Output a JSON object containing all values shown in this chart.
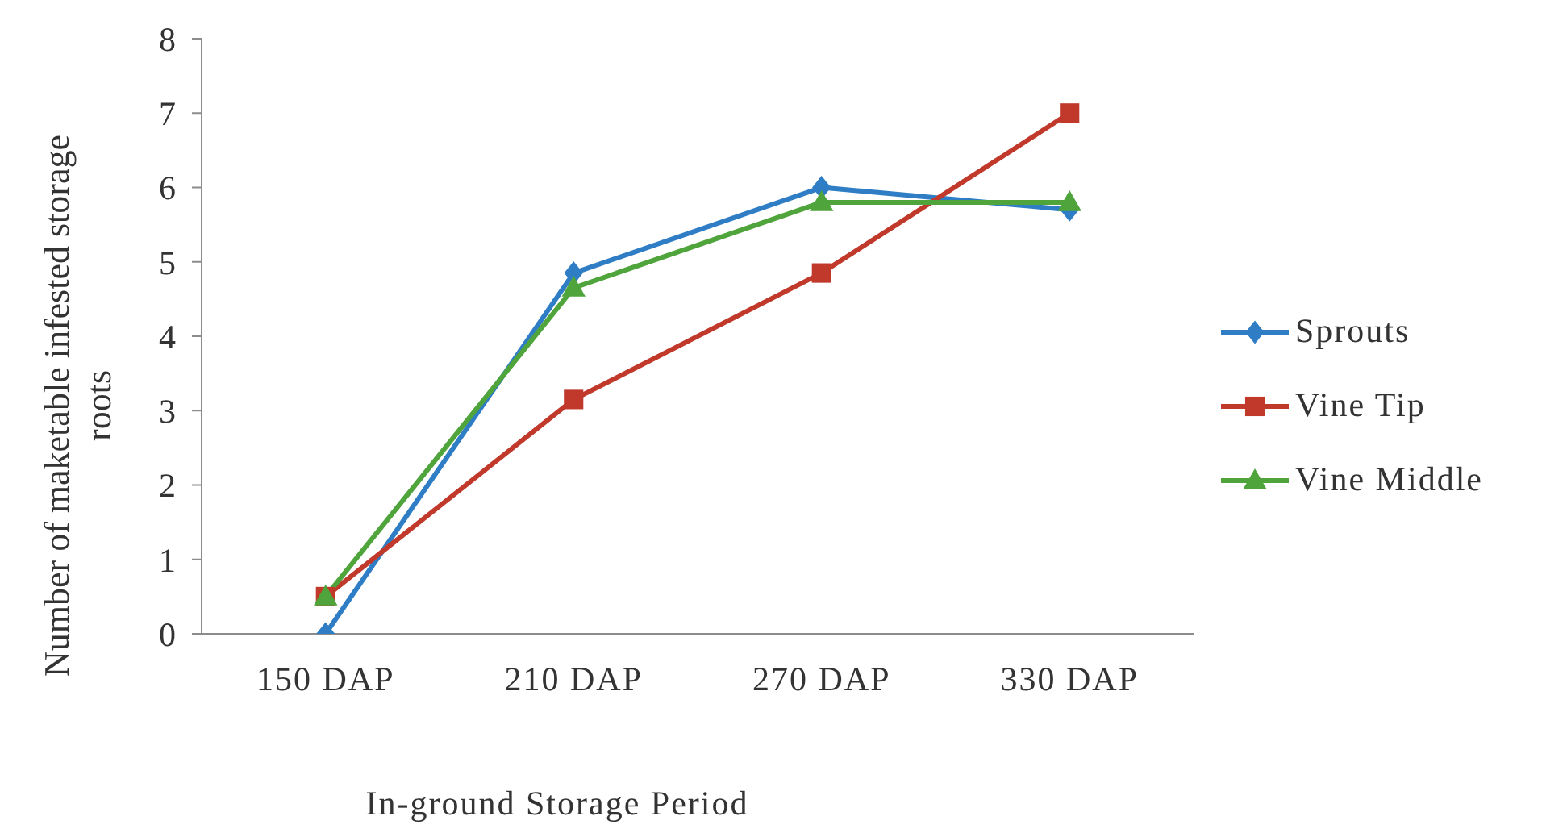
{
  "chart_data": {
    "type": "line",
    "xlabel": "In-ground Storage Period",
    "ylabel": "Number of maketable infested storage roots",
    "categories": [
      "150 DAP",
      "210 DAP",
      "270 DAP",
      "330 DAP"
    ],
    "series": [
      {
        "name": "Sprouts",
        "color": "#2f7ec5",
        "marker": "diamond",
        "values": [
          0,
          4.85,
          6.0,
          5.7
        ]
      },
      {
        "name": "Vine Tip",
        "color": "#c0392b",
        "marker": "square",
        "values": [
          0.5,
          3.15,
          4.85,
          7.0
        ]
      },
      {
        "name": "Vine Middle",
        "color": "#4fa43c",
        "marker": "triangle",
        "values": [
          0.5,
          4.65,
          5.8,
          5.8
        ]
      }
    ],
    "ylim": [
      0,
      8
    ],
    "yticks": [
      0,
      1,
      2,
      3,
      4,
      5,
      6,
      7,
      8
    ],
    "legend": "right",
    "line_style": "solid"
  }
}
